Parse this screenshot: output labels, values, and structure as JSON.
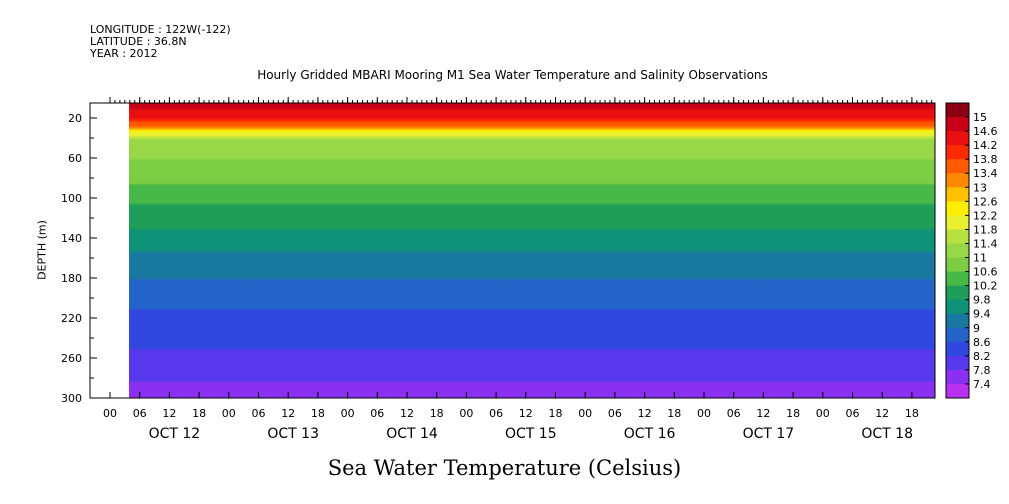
{
  "header": {
    "longitude": "LONGITUDE : 122W(-122)",
    "latitude": "LATITUDE : 36.8N",
    "year": "YEAR : 2012"
  },
  "chart_data": {
    "type": "heatmap",
    "title": "Hourly Gridded MBARI Mooring M1 Sea Water Temperature and Salinity Observations",
    "xlabel": "Sea Water Temperature (Celsius)",
    "ylabel": "DEPTH (m)",
    "ylim": [
      300,
      5
    ],
    "y_ticks": [
      20,
      60,
      100,
      140,
      180,
      220,
      260,
      300
    ],
    "x_hour_ticks": [
      "00",
      "06",
      "12",
      "18",
      "00",
      "06",
      "12",
      "18",
      "00",
      "06",
      "12",
      "18",
      "00",
      "06",
      "12",
      "18",
      "00",
      "06",
      "12",
      "18",
      "00",
      "06",
      "12",
      "18",
      "00",
      "06",
      "12",
      "18",
      "00",
      "06",
      "12",
      "18"
    ],
    "x_day_labels": [
      "OCT 12",
      "OCT 13",
      "OCT 14",
      "OCT 15",
      "OCT 16",
      "OCT 17",
      "OCT 18"
    ],
    "data_start": "OCT 12 03:00",
    "colorbar": {
      "levels": [
        15,
        14.6,
        14.2,
        13.8,
        13.4,
        13,
        12.6,
        12.2,
        11.8,
        11.4,
        11,
        10.6,
        10.2,
        9.8,
        9.4,
        9,
        8.6,
        8.2,
        7.8,
        7.4
      ],
      "colors": [
        "#8a0010",
        "#c80018",
        "#e81010",
        "#ff2a00",
        "#ff5a00",
        "#ff8a00",
        "#ffc000",
        "#ffee00",
        "#e8f030",
        "#b8e040",
        "#98d848",
        "#7ccc44",
        "#48b848",
        "#1e9e58",
        "#0e9278",
        "#1878a0",
        "#2464c8",
        "#3048e0",
        "#5838ec",
        "#8a30f0",
        "#b830f0"
      ]
    },
    "profile": [
      {
        "depth": 5,
        "temp": 14.8
      },
      {
        "depth": 20,
        "temp": 14.2
      },
      {
        "depth": 28,
        "temp": 13.4
      },
      {
        "depth": 34,
        "temp": 12.2
      },
      {
        "depth": 42,
        "temp": 11.4
      },
      {
        "depth": 60,
        "temp": 11.0
      },
      {
        "depth": 80,
        "temp": 10.7
      },
      {
        "depth": 100,
        "temp": 10.3
      },
      {
        "depth": 120,
        "temp": 10.0
      },
      {
        "depth": 140,
        "temp": 9.6
      },
      {
        "depth": 160,
        "temp": 9.3
      },
      {
        "depth": 180,
        "temp": 9.0
      },
      {
        "depth": 220,
        "temp": 8.5
      },
      {
        "depth": 260,
        "temp": 8.1
      },
      {
        "depth": 300,
        "temp": 7.6
      }
    ]
  }
}
